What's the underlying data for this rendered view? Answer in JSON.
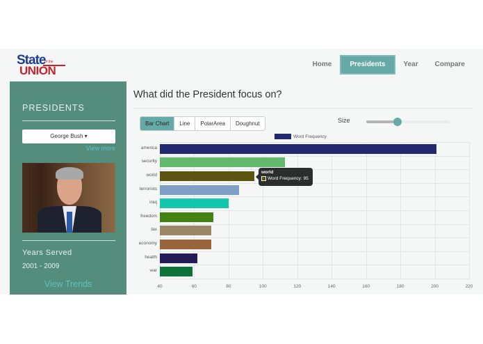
{
  "header": {
    "logo": {
      "word1": "State",
      "small": "of the",
      "word2": "UNION"
    },
    "nav": [
      {
        "label": "Home",
        "active": false
      },
      {
        "label": "Presidents",
        "active": true
      },
      {
        "label": "Year",
        "active": false
      },
      {
        "label": "Compare",
        "active": false
      }
    ]
  },
  "sidebar": {
    "title": "PRESIDENTS",
    "selected_president": "George Bush ▾",
    "view_more": "View more",
    "photo_alt": "George Bush portrait",
    "years_label": "Years Served",
    "years_value": "2001 - 2009",
    "view_trends": "View Trends"
  },
  "main": {
    "title": "What did the President focus on?",
    "tabs": [
      {
        "label": "Bar Chart",
        "active": true
      },
      {
        "label": "Line",
        "active": false
      },
      {
        "label": "PolarArea",
        "active": false
      },
      {
        "label": "Doughnut",
        "active": false
      }
    ],
    "size_label": "Size",
    "slider_value_pct": 37
  },
  "tooltip": {
    "title": "world",
    "text": "Word Frequency: 95",
    "color": "#5b5511"
  },
  "chart_data": {
    "type": "bar",
    "orientation": "horizontal",
    "title": "What did the President focus on?",
    "legend": [
      "Word Frequency"
    ],
    "legend_position": "top",
    "categories": [
      "america",
      "security",
      "world",
      "terrorists",
      "iraq",
      "freedom",
      "tax",
      "economy",
      "health",
      "war"
    ],
    "series": [
      {
        "name": "Word Frequency",
        "values": [
          201,
          113,
          95,
          86,
          80,
          71,
          70,
          70,
          62,
          59
        ]
      }
    ],
    "colors": [
      "#23296e",
      "#63b86e",
      "#5b5511",
      "#7f9fc4",
      "#13c7ad",
      "#438113",
      "#9a8866",
      "#98643a",
      "#251b59",
      "#0e7138"
    ],
    "xticks": [
      40,
      60,
      80,
      100,
      120,
      140,
      160,
      180,
      200,
      220
    ],
    "xlim": [
      40,
      220
    ],
    "xlabel": "",
    "ylabel": "",
    "grid": true
  }
}
